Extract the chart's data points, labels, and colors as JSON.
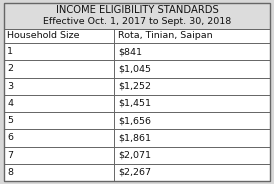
{
  "title_line1": "INCOME ELIGIBILITY STANDARDS",
  "title_line2": "Effective Oct. 1, 2017 to Sept. 30, 2018",
  "col1_header": "Household Size",
  "col2_header": "Rota, Tinian, Saipan",
  "rows": [
    [
      "1",
      "$841"
    ],
    [
      "2",
      "$1,045"
    ],
    [
      "3",
      "$1,252"
    ],
    [
      "4",
      "$1,451"
    ],
    [
      "5",
      "$1,656"
    ],
    [
      "6",
      "$1,861"
    ],
    [
      "7",
      "$2,071"
    ],
    [
      "8",
      "$2,267"
    ]
  ],
  "bg_color": "#d8d8d8",
  "title_bg": "#dcdcdc",
  "table_bg": "#ffffff",
  "border_color": "#666666",
  "title_fontsize": 7.2,
  "subtitle_fontsize": 6.8,
  "header_fontsize": 6.8,
  "cell_fontsize": 6.8,
  "col_split": 0.415
}
